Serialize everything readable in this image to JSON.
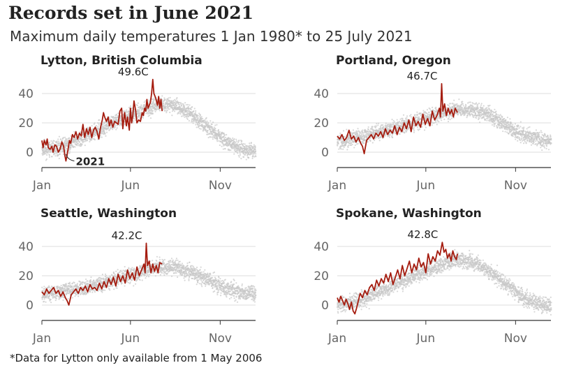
{
  "title": "Records set in June 2021",
  "subtitle": "Maximum daily temperatures 1 Jan 1980* to 25 July 2021",
  "footnote": "*Data for Lytton only available from 1 May 2006",
  "colors": {
    "line2021": "#a51c0f",
    "history": "#c8c8c8",
    "grid": "#dddddd",
    "axis": "#333333"
  },
  "chart_data": [
    {
      "type": "line",
      "title": "Lytton, British Columbia",
      "annotation": "49.6C",
      "series_label": "2021",
      "ylim": [
        -10,
        50
      ],
      "yticks": [
        "0",
        "20",
        "40"
      ],
      "xticks": [
        "Jan",
        "Jun",
        "Nov"
      ],
      "climatology_monthly": [
        2,
        5,
        11,
        17,
        23,
        27,
        33,
        32,
        25,
        15,
        6,
        1
      ],
      "x": [
        1,
        3,
        5,
        8,
        10,
        12,
        15,
        18,
        20,
        23,
        26,
        29,
        32,
        35,
        38,
        40,
        42,
        44,
        46,
        48,
        50,
        53,
        56,
        59,
        62,
        65,
        68,
        71,
        74,
        77,
        80,
        83,
        86,
        89,
        92,
        95,
        98,
        101,
        104,
        106,
        108,
        111,
        114,
        116,
        119,
        122,
        125,
        128,
        131,
        134,
        137,
        139,
        142,
        145,
        147,
        150,
        152,
        154,
        156,
        158,
        161,
        163,
        166,
        169,
        172,
        174,
        176,
        178,
        180,
        182,
        184,
        186,
        188,
        190,
        192,
        195,
        198,
        200,
        202,
        204,
        206
      ],
      "y": [
        8,
        3,
        8,
        5,
        9,
        3,
        2,
        4,
        0,
        5,
        4,
        0,
        2,
        7,
        4,
        -2,
        -6,
        -2,
        3,
        8,
        6,
        12,
        10,
        14,
        9,
        13,
        11,
        19,
        10,
        16,
        12,
        17,
        10,
        15,
        17,
        14,
        9,
        17,
        22,
        27,
        24,
        21,
        24,
        18,
        22,
        17,
        21,
        20,
        19,
        28,
        30,
        16,
        27,
        18,
        24,
        15,
        30,
        20,
        25,
        35,
        28,
        20,
        22,
        21,
        27,
        25,
        30,
        28,
        36,
        30,
        32,
        34,
        40,
        49.6,
        40,
        37,
        32,
        38,
        30,
        36,
        28
      ]
    },
    {
      "type": "line",
      "title": "Portland, Oregon",
      "annotation": "46.7C",
      "ylim": [
        -10,
        50
      ],
      "yticks": [
        "0",
        "20",
        "40"
      ],
      "xticks": [
        "Jan",
        "Jun",
        "Nov"
      ],
      "climatology_monthly": [
        8,
        11,
        14,
        17,
        21,
        25,
        29,
        29,
        26,
        18,
        12,
        8
      ],
      "x": [
        1,
        5,
        9,
        13,
        17,
        21,
        25,
        29,
        33,
        37,
        41,
        44,
        47,
        51,
        55,
        59,
        63,
        67,
        71,
        75,
        79,
        83,
        87,
        91,
        95,
        99,
        103,
        107,
        111,
        115,
        119,
        123,
        127,
        131,
        135,
        139,
        143,
        147,
        151,
        155,
        159,
        163,
        167,
        171,
        175,
        177,
        179,
        181,
        184,
        187,
        190,
        193,
        196,
        199,
        202,
        206
      ],
      "y": [
        11,
        9,
        12,
        8,
        10,
        15,
        9,
        11,
        7,
        10,
        6,
        4,
        -1,
        8,
        10,
        12,
        9,
        13,
        11,
        14,
        10,
        16,
        12,
        15,
        13,
        18,
        12,
        17,
        14,
        20,
        16,
        22,
        14,
        24,
        18,
        21,
        17,
        26,
        19,
        23,
        18,
        28,
        22,
        25,
        30,
        24,
        46.7,
        28,
        33,
        25,
        30,
        26,
        29,
        24,
        30,
        27
      ]
    },
    {
      "type": "line",
      "title": "Seattle, Washington",
      "annotation": "42.2C",
      "ylim": [
        -10,
        50
      ],
      "yticks": [
        "0",
        "20",
        "40"
      ],
      "xticks": [
        "Jan",
        "Jun",
        "Nov"
      ],
      "climatology_monthly": [
        8,
        10,
        12,
        15,
        19,
        22,
        26,
        26,
        22,
        16,
        11,
        8
      ],
      "x": [
        1,
        5,
        9,
        13,
        17,
        21,
        25,
        29,
        33,
        37,
        41,
        44,
        47,
        51,
        55,
        59,
        63,
        67,
        71,
        75,
        79,
        83,
        87,
        91,
        95,
        99,
        103,
        107,
        111,
        115,
        119,
        123,
        127,
        131,
        135,
        139,
        143,
        147,
        151,
        155,
        159,
        163,
        167,
        171,
        175,
        177,
        179,
        181,
        184,
        187,
        190,
        193,
        196,
        199,
        202,
        206
      ],
      "y": [
        9,
        7,
        11,
        8,
        10,
        12,
        8,
        10,
        6,
        9,
        5,
        3,
        0,
        7,
        9,
        11,
        8,
        12,
        10,
        13,
        9,
        14,
        11,
        12,
        10,
        15,
        11,
        16,
        12,
        18,
        14,
        19,
        13,
        21,
        16,
        20,
        15,
        24,
        18,
        22,
        17,
        26,
        20,
        24,
        28,
        22,
        42.2,
        27,
        30,
        22,
        28,
        23,
        27,
        22,
        29,
        28
      ]
    },
    {
      "type": "line",
      "title": "Spokane, Washington",
      "annotation": "42.8C",
      "ylim": [
        -10,
        50
      ],
      "yticks": [
        "0",
        "20",
        "40"
      ],
      "xticks": [
        "Jan",
        "Jun",
        "Nov"
      ],
      "climatology_monthly": [
        1,
        4,
        10,
        15,
        21,
        25,
        31,
        30,
        24,
        14,
        5,
        0
      ],
      "x": [
        1,
        4,
        7,
        10,
        13,
        16,
        19,
        22,
        25,
        28,
        31,
        34,
        37,
        40,
        44,
        48,
        52,
        56,
        60,
        64,
        68,
        72,
        76,
        80,
        84,
        88,
        92,
        96,
        100,
        104,
        108,
        112,
        116,
        120,
        124,
        128,
        132,
        136,
        140,
        144,
        148,
        152,
        156,
        160,
        164,
        168,
        172,
        176,
        180,
        183,
        186,
        189,
        192,
        195,
        198,
        201,
        204,
        206
      ],
      "y": [
        5,
        2,
        6,
        3,
        0,
        4,
        1,
        -3,
        2,
        -4,
        -6,
        -2,
        3,
        8,
        5,
        10,
        7,
        12,
        14,
        10,
        17,
        13,
        18,
        15,
        21,
        16,
        22,
        14,
        19,
        24,
        18,
        27,
        20,
        25,
        30,
        22,
        28,
        24,
        32,
        26,
        29,
        22,
        35,
        28,
        33,
        30,
        37,
        34,
        42.8,
        36,
        38,
        32,
        35,
        30,
        37,
        33,
        31,
        35
      ]
    }
  ]
}
